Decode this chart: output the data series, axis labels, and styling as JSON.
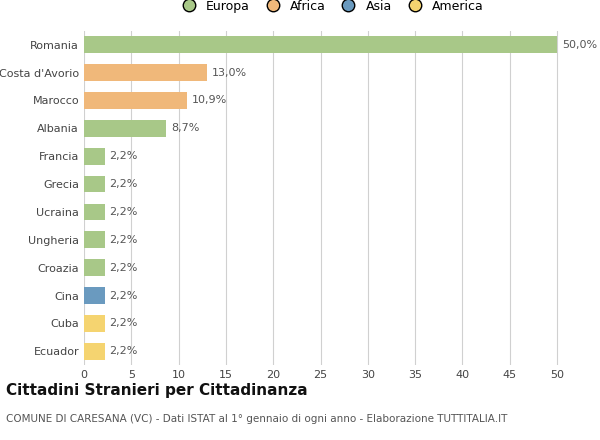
{
  "categories": [
    "Romania",
    "Costa d'Avorio",
    "Marocco",
    "Albania",
    "Francia",
    "Grecia",
    "Ucraina",
    "Ungheria",
    "Croazia",
    "Cina",
    "Cuba",
    "Ecuador"
  ],
  "values": [
    50.0,
    13.0,
    10.9,
    8.7,
    2.2,
    2.2,
    2.2,
    2.2,
    2.2,
    2.2,
    2.2,
    2.2
  ],
  "labels": [
    "50,0%",
    "13,0%",
    "10,9%",
    "8,7%",
    "2,2%",
    "2,2%",
    "2,2%",
    "2,2%",
    "2,2%",
    "2,2%",
    "2,2%",
    "2,2%"
  ],
  "colors": [
    "#a8c888",
    "#f0b87a",
    "#f0b87a",
    "#a8c888",
    "#a8c888",
    "#a8c888",
    "#a8c888",
    "#a8c888",
    "#a8c888",
    "#6a9abf",
    "#f5d470",
    "#f5d470"
  ],
  "legend_labels": [
    "Europa",
    "Africa",
    "Asia",
    "America"
  ],
  "legend_colors": [
    "#a8c888",
    "#f0b87a",
    "#6a9abf",
    "#f5d470"
  ],
  "title": "Cittadini Stranieri per Cittadinanza",
  "subtitle": "COMUNE DI CARESANA (VC) - Dati ISTAT al 1° gennaio di ogni anno - Elaborazione TUTTITALIA.IT",
  "xlim": [
    0,
    52
  ],
  "xticks": [
    0,
    5,
    10,
    15,
    20,
    25,
    30,
    35,
    40,
    45,
    50
  ],
  "background_color": "#ffffff",
  "grid_color": "#d0d0d0",
  "bar_height": 0.6,
  "title_fontsize": 11,
  "subtitle_fontsize": 7.5,
  "tick_fontsize": 8,
  "label_fontsize": 8
}
